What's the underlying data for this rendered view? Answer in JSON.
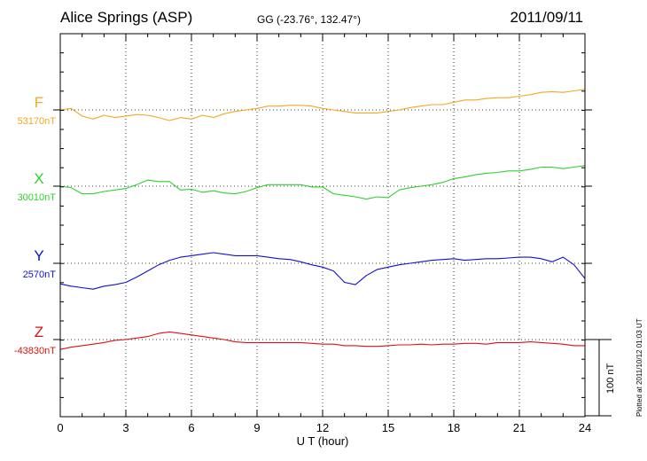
{
  "header": {
    "station": "Alice Springs (ASP)",
    "coords": "GG (-23.76°, 132.47°)",
    "date": "2011/09/11"
  },
  "footer": {
    "plotted": "Plotted at 2011/10/12 01:03 UT"
  },
  "colors": {
    "F": "#f5a623",
    "X": "#2fd12f",
    "Y": "#1010d0",
    "Z": "#e01010"
  },
  "chart_data": {
    "type": "line",
    "title": "",
    "xlabel": "U T (hour)",
    "xlim": [
      0,
      24
    ],
    "xticks": [
      0,
      3,
      6,
      9,
      12,
      15,
      18,
      21,
      24
    ],
    "grid": true,
    "scale_bar": "100 nT",
    "scale_bar_value": 100,
    "series": [
      {
        "name": "F",
        "baseline_label": "53170nT",
        "baseline": 53170,
        "x": [
          0,
          0.5,
          1,
          1.5,
          2,
          2.5,
          3,
          3.5,
          4,
          4.5,
          5,
          5.5,
          6,
          6.5,
          7,
          7.5,
          8,
          8.5,
          9,
          9.5,
          10,
          10.5,
          11,
          11.5,
          12,
          12.5,
          13,
          13.5,
          14,
          14.5,
          15,
          15.5,
          16,
          16.5,
          17,
          17.5,
          18,
          18.5,
          19,
          19.5,
          20,
          20.5,
          21,
          21.5,
          22,
          22.5,
          23,
          23.5,
          24
        ],
        "values": [
          53170,
          53172,
          53162,
          53158,
          53163,
          53160,
          53162,
          53164,
          53163,
          53160,
          53156,
          53160,
          53158,
          53163,
          53160,
          53165,
          53168,
          53170,
          53172,
          53175,
          53175,
          53176,
          53176,
          53175,
          53172,
          53170,
          53168,
          53166,
          53166,
          53166,
          53168,
          53170,
          53173,
          53175,
          53177,
          53177,
          53180,
          53183,
          53183,
          53185,
          53186,
          53186,
          53188,
          53190,
          53193,
          53194,
          53193,
          53195,
          53197
        ]
      },
      {
        "name": "X",
        "baseline_label": "30010nT",
        "baseline": 30010,
        "x": [
          0,
          0.5,
          1,
          1.5,
          2,
          2.5,
          3,
          3.5,
          4,
          4.5,
          5,
          5.5,
          6,
          6.5,
          7,
          7.5,
          8,
          8.5,
          9,
          9.5,
          10,
          10.5,
          11,
          11.5,
          12,
          12.5,
          13,
          13.5,
          14,
          14.5,
          15,
          15.5,
          16,
          16.5,
          17,
          17.5,
          18,
          18.5,
          19,
          19.5,
          20,
          20.5,
          21,
          21.5,
          22,
          22.5,
          23,
          23.5,
          24
        ],
        "values": [
          30010,
          30008,
          30000,
          30000,
          30003,
          30005,
          30007,
          30012,
          30018,
          30016,
          30016,
          30005,
          30006,
          30002,
          30004,
          30001,
          30000,
          30003,
          30008,
          30012,
          30012,
          30012,
          30012,
          30009,
          30009,
          30000,
          29998,
          29996,
          29993,
          29996,
          29995,
          30005,
          30008,
          30010,
          30012,
          30015,
          30020,
          30022,
          30025,
          30027,
          30028,
          30030,
          30030,
          30032,
          30035,
          30035,
          30033,
          30035,
          30037
        ]
      },
      {
        "name": "Y",
        "baseline_label": "2570nT",
        "baseline": 2570,
        "x": [
          0,
          0.5,
          1,
          1.5,
          2,
          2.5,
          3,
          3.5,
          4,
          4.5,
          5,
          5.5,
          6,
          6.5,
          7,
          7.5,
          8,
          8.5,
          9,
          9.5,
          10,
          10.5,
          11,
          11.5,
          12,
          12.5,
          13,
          13.5,
          14,
          14.5,
          15,
          15.5,
          16,
          16.5,
          17,
          17.5,
          18,
          18.5,
          19,
          19.5,
          20,
          20.5,
          21,
          21.5,
          22,
          22.5,
          23,
          23.5,
          24
        ],
        "values": [
          2543,
          2540,
          2538,
          2536,
          2540,
          2542,
          2545,
          2552,
          2560,
          2568,
          2574,
          2578,
          2580,
          2582,
          2584,
          2582,
          2580,
          2580,
          2580,
          2578,
          2576,
          2575,
          2572,
          2568,
          2565,
          2560,
          2545,
          2542,
          2554,
          2562,
          2565,
          2568,
          2570,
          2572,
          2574,
          2575,
          2576,
          2574,
          2575,
          2576,
          2576,
          2577,
          2578,
          2578,
          2576,
          2572,
          2578,
          2568,
          2550
        ]
      },
      {
        "name": "Z",
        "baseline_label": "-43830nT",
        "baseline": -43830,
        "x": [
          0,
          0.5,
          1,
          1.5,
          2,
          2.5,
          3,
          3.5,
          4,
          4.5,
          5,
          5.5,
          6,
          6.5,
          7,
          7.5,
          8,
          8.5,
          9,
          9.5,
          10,
          10.5,
          11,
          11.5,
          12,
          12.5,
          13,
          13.5,
          14,
          14.5,
          15,
          15.5,
          16,
          16.5,
          17,
          17.5,
          18,
          18.5,
          19,
          19.5,
          20,
          20.5,
          21,
          21.5,
          22,
          22.5,
          23,
          23.5,
          24
        ],
        "values": [
          -43843,
          -43840,
          -43838,
          -43836,
          -43834,
          -43831,
          -43830,
          -43828,
          -43826,
          -43822,
          -43820,
          -43822,
          -43824,
          -43826,
          -43828,
          -43830,
          -43833,
          -43834,
          -43834,
          -43834,
          -43834,
          -43834,
          -43834,
          -43835,
          -43836,
          -43836,
          -43838,
          -43838,
          -43839,
          -43839,
          -43838,
          -43837,
          -43837,
          -43836,
          -43837,
          -43836,
          -43836,
          -43835,
          -43835,
          -43836,
          -43834,
          -43834,
          -43834,
          -43833,
          -43834,
          -43835,
          -43836,
          -43838,
          -43838
        ]
      }
    ]
  }
}
